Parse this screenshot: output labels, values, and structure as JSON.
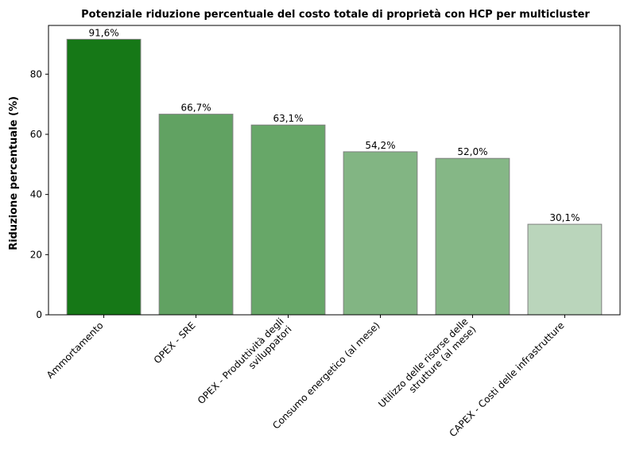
{
  "chart_data": {
    "type": "bar",
    "title": "Potenziale riduzione percentuale del costo totale di proprietà con HCP per multicluster",
    "xlabel": "",
    "ylabel": "Riduzione percentuale (%)",
    "ylim": [
      0,
      96.2
    ],
    "yticks": [
      0,
      20,
      40,
      60,
      80
    ],
    "grid": false,
    "categories": [
      [
        "Ammortamento"
      ],
      [
        "OPEX - SRE"
      ],
      [
        "OPEX - Produttività degli",
        "sviluppatori"
      ],
      [
        "Consumo energetico (al mese)"
      ],
      [
        "Utilizzo delle risorse delle",
        "strutture (al mese)"
      ],
      [
        "CAPEX - Costi delle infrastrutture"
      ]
    ],
    "values": [
      91.6,
      66.7,
      63.1,
      54.2,
      52.0,
      30.1
    ],
    "value_labels": [
      "91,6%",
      "66,7%",
      "63,1%",
      "54,2%",
      "52,0%",
      "30,1%"
    ],
    "colors": [
      "#167817",
      "#61a262",
      "#67a768",
      "#82b583",
      "#85b786",
      "#bad5bb"
    ],
    "edge_color": "#808080"
  }
}
